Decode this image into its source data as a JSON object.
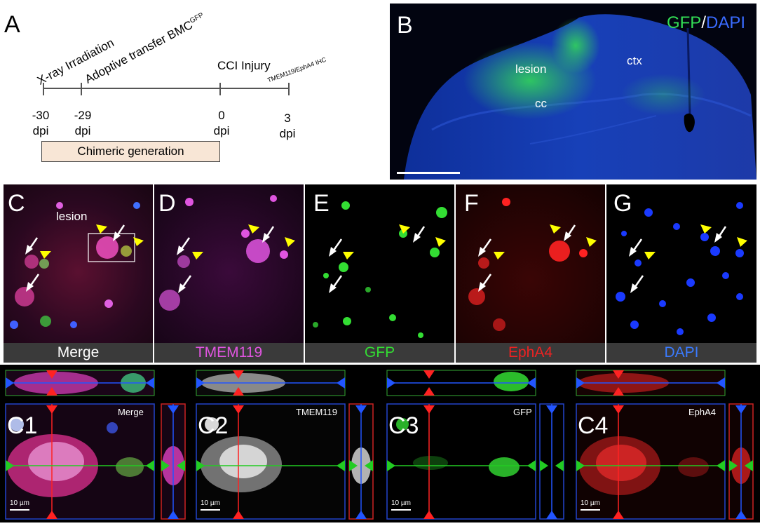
{
  "panelA": {
    "label": "A",
    "events": {
      "irradiation": "X-ray Irradiation",
      "transfer": "Adoptive transfer BMC",
      "transfer_sup": "GFP",
      "cci": "CCI Injury",
      "ihc": "TMEM119/EphA4 IHC"
    },
    "ticks": [
      {
        "value": "-30",
        "unit": "dpi"
      },
      {
        "value": "-29",
        "unit": "dpi"
      },
      {
        "value": "0",
        "unit": "dpi"
      },
      {
        "value": "3",
        "unit": "dpi"
      }
    ],
    "box_label": "Chimeric generation",
    "box_color": "#f8e6d6"
  },
  "panelB": {
    "label": "B",
    "title_gfp": "GFP",
    "title_sep": "/",
    "title_dapi": "DAPI",
    "region_lesion": "lesion",
    "region_ctx": "ctx",
    "region_cc": "cc"
  },
  "rowPanels": [
    {
      "label": "C",
      "extra": "lesion",
      "channel": "Merge",
      "channel_color": "#ffffff"
    },
    {
      "label": "D",
      "channel": "TMEM119",
      "channel_color": "#e055e0"
    },
    {
      "label": "E",
      "channel": "GFP",
      "channel_color": "#33dd33"
    },
    {
      "label": "F",
      "channel": "EphA4",
      "channel_color": "#ee2222"
    },
    {
      "label": "G",
      "channel": "DAPI",
      "channel_color": "#3a7bff"
    }
  ],
  "zoomPanels": [
    {
      "label": "C1",
      "channel": "Merge",
      "scale": "10 µm"
    },
    {
      "label": "C2",
      "channel": "TMEM119",
      "scale": "10 µm"
    },
    {
      "label": "C3",
      "channel": "GFP",
      "scale": "10 µm"
    },
    {
      "label": "C4",
      "channel": "EphA4",
      "scale": "10 µm"
    }
  ],
  "colors": {
    "gfp": "#33dd33",
    "dapi": "#2255ff",
    "tmem119": "#e055e0",
    "epha4": "#ee2222",
    "arrow_yellow": "#ffff00",
    "arrow_white": "#ffffff"
  }
}
